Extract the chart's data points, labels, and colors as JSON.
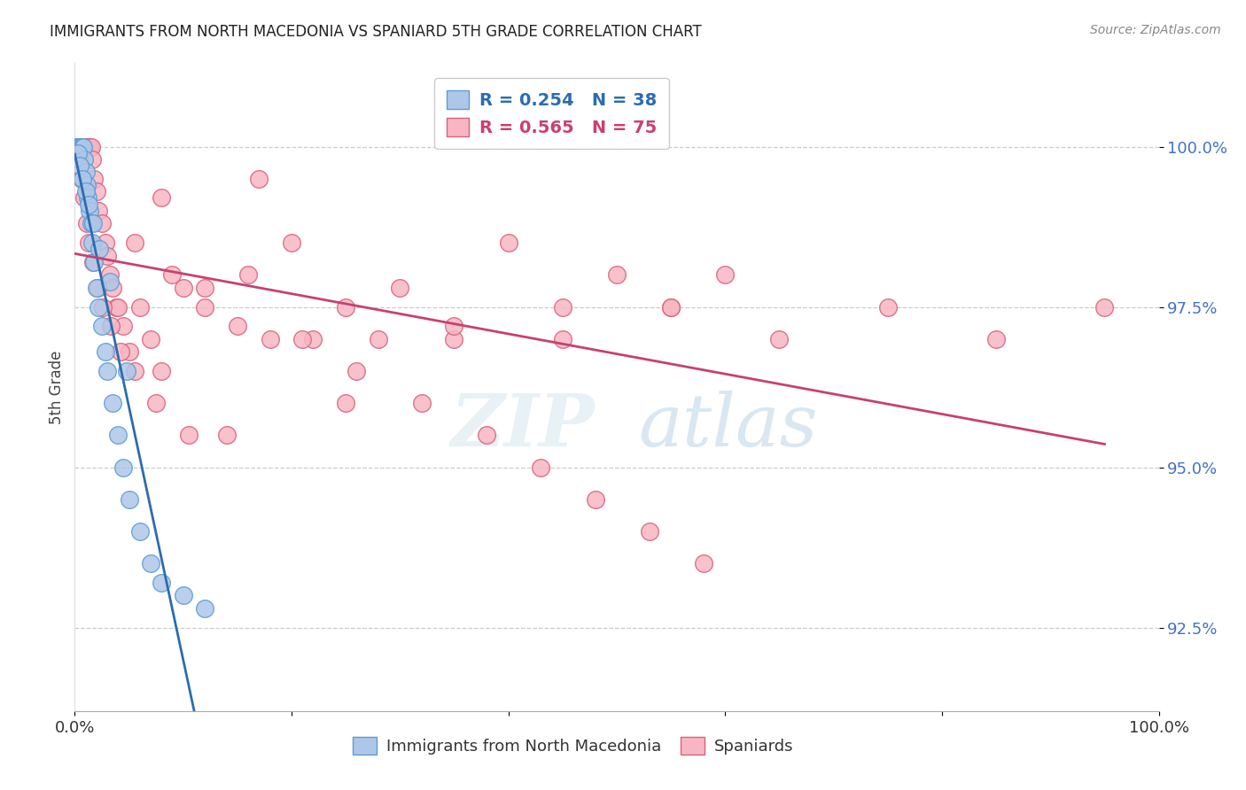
{
  "title": "IMMIGRANTS FROM NORTH MACEDONIA VS SPANIARD 5TH GRADE CORRELATION CHART",
  "source": "Source: ZipAtlas.com",
  "ylabel": "5th Grade",
  "y_ticks": [
    92.5,
    95.0,
    97.5,
    100.0
  ],
  "y_tick_labels": [
    "92.5%",
    "95.0%",
    "97.5%",
    "100.0%"
  ],
  "xlim": [
    0.0,
    100.0
  ],
  "ylim": [
    91.2,
    101.3
  ],
  "blue_R": 0.254,
  "blue_N": 38,
  "pink_R": 0.565,
  "pink_N": 75,
  "blue_color": "#aec7e8",
  "pink_color": "#f7b6c2",
  "blue_edge_color": "#5b9bd5",
  "pink_edge_color": "#d9607a",
  "blue_line_color": "#2b6cb0",
  "pink_line_color": "#c94070",
  "watermark_zip": "ZIP",
  "watermark_atlas": "atlas",
  "legend_label_blue": "Immigrants from North Macedonia",
  "legend_label_pink": "Spaniards",
  "blue_x": [
    0.2,
    0.3,
    0.4,
    0.5,
    0.6,
    0.7,
    0.8,
    0.9,
    1.0,
    1.1,
    1.2,
    1.4,
    1.5,
    1.6,
    1.8,
    2.0,
    2.2,
    2.5,
    2.8,
    3.0,
    3.5,
    4.0,
    4.5,
    5.0,
    6.0,
    7.0,
    8.0,
    10.0,
    12.0,
    0.3,
    0.5,
    0.7,
    1.0,
    1.3,
    1.7,
    2.3,
    3.2,
    4.8
  ],
  "blue_y": [
    100.0,
    100.0,
    100.0,
    100.0,
    100.0,
    100.0,
    100.0,
    99.8,
    99.6,
    99.4,
    99.2,
    99.0,
    98.8,
    98.5,
    98.2,
    97.8,
    97.5,
    97.2,
    96.8,
    96.5,
    96.0,
    95.5,
    95.0,
    94.5,
    94.0,
    93.5,
    93.2,
    93.0,
    92.8,
    99.9,
    99.7,
    99.5,
    99.3,
    99.1,
    98.8,
    98.4,
    97.9,
    96.5
  ],
  "pink_x": [
    0.3,
    0.5,
    0.7,
    0.8,
    1.0,
    1.2,
    1.4,
    1.5,
    1.6,
    1.8,
    2.0,
    2.2,
    2.5,
    2.8,
    3.0,
    3.2,
    3.5,
    3.8,
    4.0,
    4.5,
    5.0,
    5.5,
    6.0,
    7.0,
    8.0,
    9.0,
    10.0,
    12.0,
    15.0,
    18.0,
    20.0,
    22.0,
    25.0,
    28.0,
    30.0,
    35.0,
    40.0,
    45.0,
    50.0,
    55.0,
    60.0,
    0.4,
    0.6,
    0.9,
    1.1,
    1.3,
    1.7,
    2.1,
    2.6,
    3.3,
    4.2,
    5.5,
    7.5,
    10.5,
    14.0,
    17.0,
    21.0,
    26.0,
    32.0,
    38.0,
    43.0,
    48.0,
    53.0,
    58.0,
    8.0,
    12.0,
    16.0,
    25.0,
    35.0,
    45.0,
    55.0,
    65.0,
    75.0,
    85.0,
    95.0
  ],
  "pink_y": [
    100.0,
    100.0,
    100.0,
    100.0,
    100.0,
    100.0,
    100.0,
    100.0,
    99.8,
    99.5,
    99.3,
    99.0,
    98.8,
    98.5,
    98.3,
    98.0,
    97.8,
    97.5,
    97.5,
    97.2,
    96.8,
    98.5,
    97.5,
    97.0,
    96.5,
    98.0,
    97.8,
    97.5,
    97.2,
    97.0,
    98.5,
    97.0,
    97.5,
    97.0,
    97.8,
    97.0,
    98.5,
    97.5,
    98.0,
    97.5,
    98.0,
    99.8,
    99.5,
    99.2,
    98.8,
    98.5,
    98.2,
    97.8,
    97.5,
    97.2,
    96.8,
    96.5,
    96.0,
    95.5,
    95.5,
    99.5,
    97.0,
    96.5,
    96.0,
    95.5,
    95.0,
    94.5,
    94.0,
    93.5,
    99.2,
    97.8,
    98.0,
    96.0,
    97.2,
    97.0,
    97.5,
    97.0,
    97.5,
    97.0,
    97.5
  ]
}
